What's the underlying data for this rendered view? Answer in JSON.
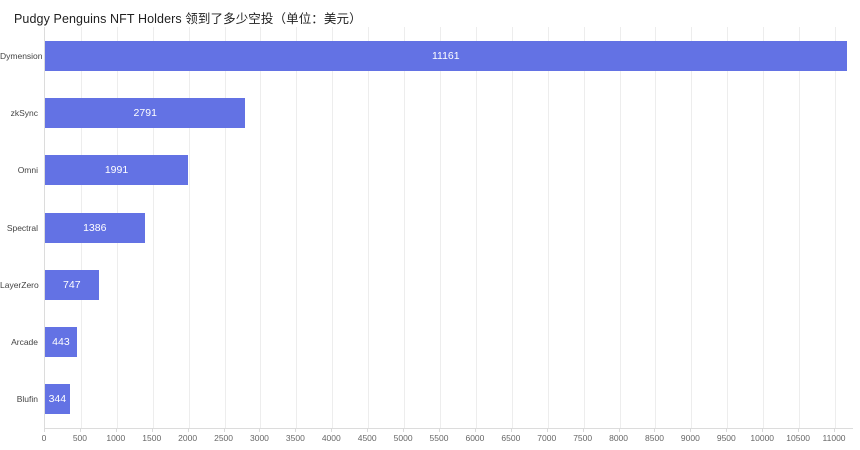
{
  "chart_data": {
    "type": "bar",
    "orientation": "horizontal",
    "title": "Pudgy Penguins NFT Holders 领到了多少空投（单位：美元）",
    "categories": [
      "Dymension",
      "zkSync",
      "Omni",
      "Spectral",
      "LayerZero",
      "Arcade",
      "Blufin"
    ],
    "values": [
      11161,
      2791,
      1991,
      1386,
      747,
      443,
      344
    ],
    "xlabel": "",
    "ylabel": "",
    "xlim": [
      0,
      11250
    ],
    "x_ticks": [
      0,
      500,
      1000,
      1500,
      2000,
      2500,
      3000,
      3500,
      4000,
      4500,
      5000,
      5500,
      6000,
      6500,
      7000,
      7500,
      8000,
      8500,
      9000,
      9500,
      10000,
      10500,
      11000
    ],
    "grid": true,
    "legend": "none",
    "bar_color": "#6372e4",
    "value_label_color": "#ffffff",
    "value_label_position": "inside-center"
  }
}
